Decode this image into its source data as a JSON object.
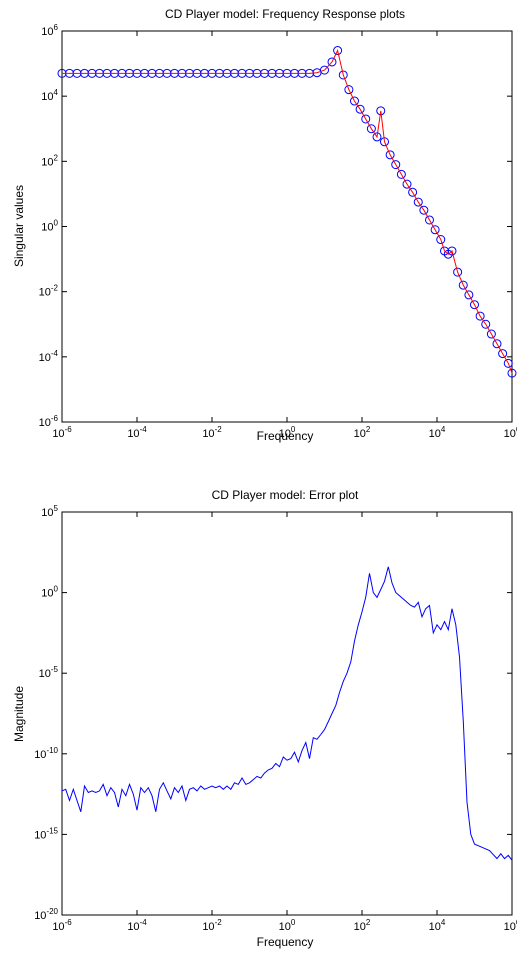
{
  "chart_data": [
    {
      "type": "line",
      "title": "CD Player model: Frequency Response plots",
      "xlabel": "Frequency",
      "ylabel": "Singular values",
      "xscale": "log",
      "yscale": "log",
      "xlim_exp": [
        -6,
        6
      ],
      "ylim_exp": [
        -6,
        6
      ],
      "x_tick_exps": [
        "-6",
        "-4",
        "-2",
        "0",
        "2",
        "4",
        "6"
      ],
      "y_tick_exps": [
        "-6",
        "-4",
        "-2",
        "0",
        "2",
        "4",
        "6"
      ],
      "grid": false,
      "legend": "none",
      "series": [
        {
          "style": "circle markers",
          "color": "#0000ff",
          "points_log10": [
            [
              -6.0,
              4.7
            ],
            [
              -5.8,
              4.7
            ],
            [
              -5.6,
              4.7
            ],
            [
              -5.4,
              4.7
            ],
            [
              -5.2,
              4.7
            ],
            [
              -5.0,
              4.7
            ],
            [
              -4.8,
              4.7
            ],
            [
              -4.6,
              4.7
            ],
            [
              -4.4,
              4.7
            ],
            [
              -4.2,
              4.7
            ],
            [
              -4.0,
              4.7
            ],
            [
              -3.8,
              4.7
            ],
            [
              -3.6,
              4.7
            ],
            [
              -3.4,
              4.7
            ],
            [
              -3.2,
              4.7
            ],
            [
              -3.0,
              4.7
            ],
            [
              -2.8,
              4.7
            ],
            [
              -2.6,
              4.7
            ],
            [
              -2.4,
              4.7
            ],
            [
              -2.2,
              4.7
            ],
            [
              -2.0,
              4.7
            ],
            [
              -1.8,
              4.7
            ],
            [
              -1.6,
              4.7
            ],
            [
              -1.4,
              4.7
            ],
            [
              -1.2,
              4.7
            ],
            [
              -1.0,
              4.7
            ],
            [
              -0.8,
              4.7
            ],
            [
              -0.6,
              4.7
            ],
            [
              -0.4,
              4.7
            ],
            [
              -0.2,
              4.7
            ],
            [
              0.0,
              4.7
            ],
            [
              0.2,
              4.7
            ],
            [
              0.4,
              4.7
            ],
            [
              0.6,
              4.7
            ],
            [
              0.8,
              4.72
            ],
            [
              1.0,
              4.8
            ],
            [
              1.2,
              5.05
            ],
            [
              1.35,
              5.4
            ],
            [
              1.5,
              4.65
            ],
            [
              1.65,
              4.2
            ],
            [
              1.8,
              3.85
            ],
            [
              1.95,
              3.6
            ],
            [
              2.1,
              3.3
            ],
            [
              2.25,
              3.0
            ],
            [
              2.4,
              2.75
            ],
            [
              2.5,
              3.55
            ],
            [
              2.6,
              2.6
            ],
            [
              2.75,
              2.2
            ],
            [
              2.9,
              1.9
            ],
            [
              3.05,
              1.6
            ],
            [
              3.2,
              1.3
            ],
            [
              3.35,
              1.05
            ],
            [
              3.5,
              0.75
            ],
            [
              3.65,
              0.5
            ],
            [
              3.8,
              0.2
            ],
            [
              3.95,
              -0.1
            ],
            [
              4.1,
              -0.4
            ],
            [
              4.2,
              -0.75
            ],
            [
              4.3,
              -0.85
            ],
            [
              4.4,
              -0.75
            ],
            [
              4.55,
              -1.4
            ],
            [
              4.7,
              -1.8
            ],
            [
              4.85,
              -2.1
            ],
            [
              5.0,
              -2.4
            ],
            [
              5.15,
              -2.75
            ],
            [
              5.3,
              -3.0
            ],
            [
              5.45,
              -3.3
            ],
            [
              5.6,
              -3.6
            ],
            [
              5.75,
              -3.9
            ],
            [
              5.9,
              -4.2
            ],
            [
              6.0,
              -4.5
            ]
          ]
        },
        {
          "style": "line",
          "color": "#ff0000",
          "points_log10": [
            [
              -6.0,
              4.7
            ],
            [
              0.6,
              4.7
            ],
            [
              0.8,
              4.72
            ],
            [
              1.0,
              4.8
            ],
            [
              1.2,
              5.05
            ],
            [
              1.35,
              5.4
            ],
            [
              1.5,
              4.65
            ],
            [
              1.65,
              4.2
            ],
            [
              1.8,
              3.85
            ],
            [
              1.95,
              3.6
            ],
            [
              2.1,
              3.3
            ],
            [
              2.25,
              3.0
            ],
            [
              2.4,
              2.75
            ],
            [
              2.5,
              3.55
            ],
            [
              2.6,
              2.6
            ],
            [
              2.75,
              2.2
            ],
            [
              2.9,
              1.9
            ],
            [
              3.05,
              1.6
            ],
            [
              3.2,
              1.3
            ],
            [
              3.35,
              1.05
            ],
            [
              3.5,
              0.75
            ],
            [
              3.65,
              0.5
            ],
            [
              3.8,
              0.2
            ],
            [
              3.95,
              -0.1
            ],
            [
              4.1,
              -0.4
            ],
            [
              4.2,
              -0.75
            ],
            [
              4.3,
              -0.85
            ],
            [
              4.4,
              -0.75
            ],
            [
              4.55,
              -1.4
            ],
            [
              4.7,
              -1.8
            ],
            [
              4.85,
              -2.1
            ],
            [
              5.0,
              -2.4
            ],
            [
              5.15,
              -2.75
            ],
            [
              5.3,
              -3.0
            ],
            [
              5.45,
              -3.3
            ],
            [
              5.6,
              -3.6
            ],
            [
              5.75,
              -3.9
            ],
            [
              5.9,
              -4.2
            ],
            [
              6.0,
              -4.5
            ]
          ]
        }
      ]
    },
    {
      "type": "line",
      "title": "CD Player model: Error plot",
      "xlabel": "Frequency",
      "ylabel": "Magnitude",
      "xscale": "log",
      "yscale": "log",
      "xlim_exp": [
        -6,
        6
      ],
      "ylim_exp": [
        -20,
        5
      ],
      "x_tick_exps": [
        "-6",
        "-4",
        "-2",
        "0",
        "2",
        "4",
        "6"
      ],
      "y_tick_exps": [
        "-20",
        "-15",
        "-10",
        "-5",
        "0",
        "5"
      ],
      "grid": false,
      "legend": "none",
      "series": [
        {
          "style": "line",
          "color": "#0000ff",
          "points_log10": [
            [
              -6.0,
              -12.3
            ],
            [
              -5.9,
              -12.2
            ],
            [
              -5.8,
              -12.9
            ],
            [
              -5.7,
              -12.2
            ],
            [
              -5.6,
              -12.9
            ],
            [
              -5.5,
              -13.6
            ],
            [
              -5.4,
              -12.0
            ],
            [
              -5.3,
              -12.4
            ],
            [
              -5.2,
              -12.3
            ],
            [
              -5.1,
              -12.4
            ],
            [
              -5.0,
              -12.3
            ],
            [
              -4.9,
              -11.9
            ],
            [
              -4.8,
              -12.6
            ],
            [
              -4.7,
              -12.1
            ],
            [
              -4.6,
              -12.4
            ],
            [
              -4.5,
              -13.3
            ],
            [
              -4.4,
              -12.2
            ],
            [
              -4.3,
              -12.6
            ],
            [
              -4.2,
              -11.9
            ],
            [
              -4.1,
              -12.5
            ],
            [
              -4.0,
              -13.5
            ],
            [
              -3.9,
              -12.1
            ],
            [
              -3.8,
              -12.4
            ],
            [
              -3.7,
              -12.1
            ],
            [
              -3.6,
              -12.6
            ],
            [
              -3.5,
              -13.6
            ],
            [
              -3.4,
              -12.2
            ],
            [
              -3.3,
              -11.8
            ],
            [
              -3.2,
              -12.3
            ],
            [
              -3.1,
              -12.8
            ],
            [
              -3.0,
              -12.1
            ],
            [
              -2.9,
              -12.4
            ],
            [
              -2.8,
              -12.0
            ],
            [
              -2.7,
              -12.9
            ],
            [
              -2.6,
              -12.2
            ],
            [
              -2.5,
              -12.1
            ],
            [
              -2.4,
              -12.3
            ],
            [
              -2.3,
              -12.0
            ],
            [
              -2.2,
              -12.2
            ],
            [
              -2.1,
              -12.1
            ],
            [
              -2.0,
              -12.0
            ],
            [
              -1.9,
              -12.1
            ],
            [
              -1.8,
              -12.0
            ],
            [
              -1.7,
              -12.2
            ],
            [
              -1.6,
              -12.0
            ],
            [
              -1.5,
              -12.2
            ],
            [
              -1.4,
              -11.8
            ],
            [
              -1.3,
              -11.9
            ],
            [
              -1.2,
              -11.5
            ],
            [
              -1.1,
              -11.9
            ],
            [
              -1.0,
              -11.8
            ],
            [
              -0.9,
              -11.6
            ],
            [
              -0.8,
              -11.4
            ],
            [
              -0.7,
              -11.5
            ],
            [
              -0.6,
              -11.2
            ],
            [
              -0.5,
              -11.0
            ],
            [
              -0.4,
              -10.9
            ],
            [
              -0.3,
              -10.6
            ],
            [
              -0.2,
              -10.8
            ],
            [
              -0.1,
              -10.2
            ],
            [
              0.0,
              -10.4
            ],
            [
              0.1,
              -10.3
            ],
            [
              0.2,
              -9.9
            ],
            [
              0.3,
              -10.5
            ],
            [
              0.4,
              -9.8
            ],
            [
              0.5,
              -9.3
            ],
            [
              0.6,
              -10.3
            ],
            [
              0.7,
              -9.0
            ],
            [
              0.8,
              -9.1
            ],
            [
              0.9,
              -8.8
            ],
            [
              1.0,
              -8.5
            ],
            [
              1.1,
              -8.0
            ],
            [
              1.2,
              -7.5
            ],
            [
              1.3,
              -7.0
            ],
            [
              1.4,
              -6.2
            ],
            [
              1.5,
              -5.5
            ],
            [
              1.6,
              -5.0
            ],
            [
              1.7,
              -4.3
            ],
            [
              1.8,
              -3.0
            ],
            [
              1.9,
              -2.0
            ],
            [
              2.0,
              -1.2
            ],
            [
              2.1,
              -0.3
            ],
            [
              2.2,
              1.2
            ],
            [
              2.3,
              0.0
            ],
            [
              2.4,
              -0.3
            ],
            [
              2.5,
              0.2
            ],
            [
              2.6,
              0.7
            ],
            [
              2.7,
              1.6
            ],
            [
              2.8,
              0.6
            ],
            [
              2.9,
              0.0
            ],
            [
              3.0,
              -0.2
            ],
            [
              3.1,
              -0.4
            ],
            [
              3.2,
              -0.6
            ],
            [
              3.3,
              -0.8
            ],
            [
              3.4,
              -0.9
            ],
            [
              3.5,
              -0.6
            ],
            [
              3.6,
              -1.5
            ],
            [
              3.7,
              -1.0
            ],
            [
              3.8,
              -0.8
            ],
            [
              3.9,
              -2.5
            ],
            [
              4.0,
              -2.0
            ],
            [
              4.1,
              -2.3
            ],
            [
              4.2,
              -1.8
            ],
            [
              4.3,
              -2.3
            ],
            [
              4.4,
              -1.0
            ],
            [
              4.5,
              -2.0
            ],
            [
              4.6,
              -4.0
            ],
            [
              4.7,
              -8.0
            ],
            [
              4.8,
              -13.0
            ],
            [
              4.9,
              -15.0
            ],
            [
              5.0,
              -15.6
            ],
            [
              5.2,
              -15.8
            ],
            [
              5.4,
              -16.0
            ],
            [
              5.6,
              -16.5
            ],
            [
              5.7,
              -16.2
            ],
            [
              5.8,
              -16.5
            ],
            [
              5.9,
              -16.3
            ],
            [
              6.0,
              -16.6
            ]
          ]
        }
      ]
    }
  ]
}
